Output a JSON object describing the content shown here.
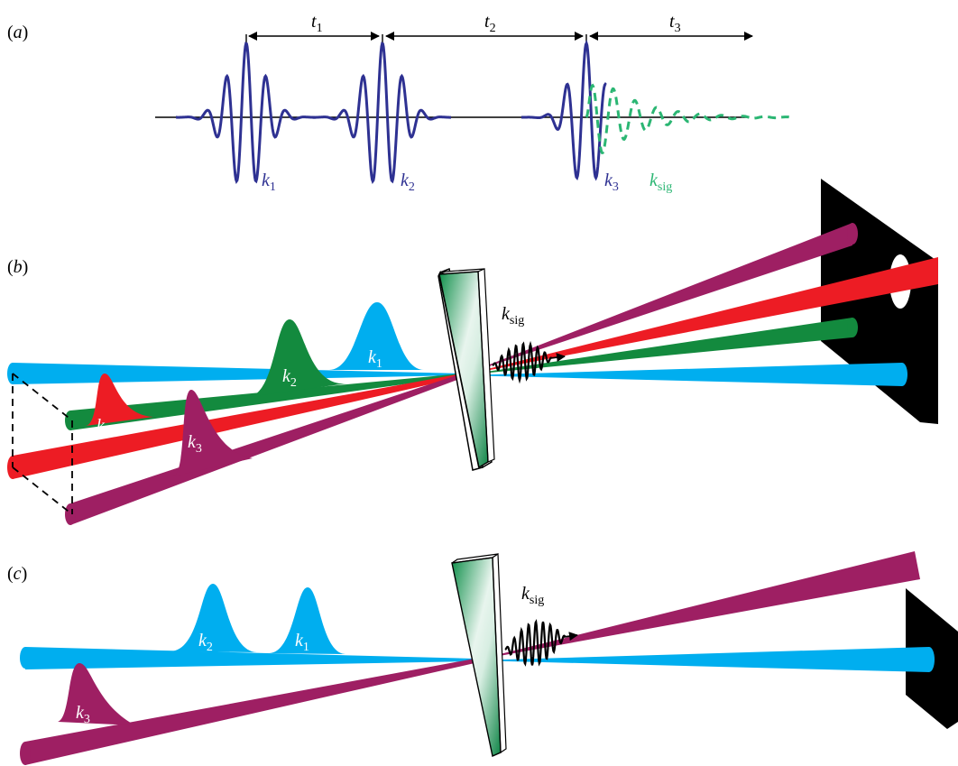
{
  "panels": {
    "a": {
      "label_open": "(",
      "label_letter": "a",
      "label_close": ")",
      "delays": [
        {
          "letter": "t",
          "sub": "1"
        },
        {
          "letter": "t",
          "sub": "2"
        },
        {
          "letter": "t",
          "sub": "3"
        }
      ],
      "pulses": [
        {
          "letter": "k",
          "sub": "1"
        },
        {
          "letter": "k",
          "sub": "2"
        },
        {
          "letter": "k",
          "sub": "3"
        }
      ],
      "signal": {
        "letter": "k",
        "sub": "sig"
      }
    },
    "b": {
      "label_open": "(",
      "label_letter": "b",
      "label_close": ")",
      "beams": [
        {
          "letter": "k",
          "sub": "1"
        },
        {
          "letter": "k",
          "sub": "2"
        },
        {
          "letter": "k",
          "sub": "3"
        },
        {
          "letter": "k",
          "sub": "LO"
        }
      ],
      "signal": {
        "letter": "k",
        "sub": "sig"
      }
    },
    "c": {
      "label_open": "(",
      "label_letter": "c",
      "label_close": ")",
      "beams": [
        {
          "letter": "k",
          "sub": "2"
        },
        {
          "letter": "k",
          "sub": "1"
        },
        {
          "letter": "k",
          "sub": "3"
        }
      ],
      "signal": {
        "letter": "k",
        "sub": "sig"
      }
    }
  },
  "colors": {
    "pulse_blue": "#2e3192",
    "signal_green": "#2bb673",
    "beam_cyan": "#00aeef",
    "beam_green": "#138a3e",
    "beam_red": "#ed1c24",
    "beam_purple": "#9e1f63",
    "black": "#000000"
  }
}
